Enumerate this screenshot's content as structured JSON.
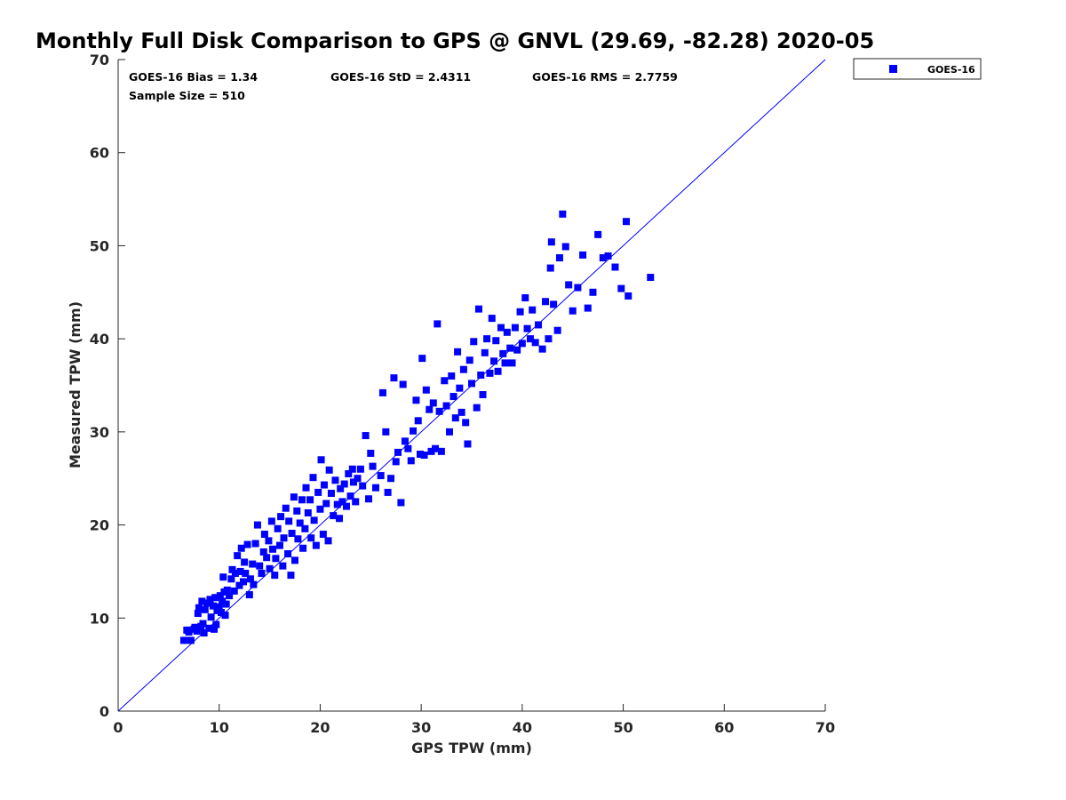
{
  "chart_data": {
    "type": "scatter",
    "title": "Monthly Full Disk Comparison to GPS @ GNVL (29.69, -82.28) 2020-05",
    "xlabel": "GPS TPW (mm)",
    "ylabel": "Measured TPW (mm)",
    "xlim": [
      0,
      70
    ],
    "ylim": [
      0,
      70
    ],
    "xticks": [
      "0",
      "10",
      "20",
      "30",
      "40",
      "50",
      "60",
      "70"
    ],
    "yticks": [
      "0",
      "10",
      "20",
      "30",
      "40",
      "50",
      "60",
      "70"
    ],
    "grid": false,
    "legend_position": "outside-top-right",
    "stats": {
      "bias": "GOES-16 Bias = 1.34",
      "std": "GOES-16 StD = 2.4311",
      "rms": "GOES-16 RMS = 2.7759",
      "sample": "Sample Size = 510"
    },
    "reference_line": {
      "x": [
        0,
        70
      ],
      "y": [
        0,
        70
      ],
      "color": "#0000ff"
    },
    "series": [
      {
        "name": "GOES-16",
        "color": "#0000ff",
        "marker": "square",
        "points": [
          [
            6.5,
            7.6
          ],
          [
            6.8,
            8.7
          ],
          [
            7.0,
            8.5
          ],
          [
            7.2,
            7.6
          ],
          [
            7.5,
            8.8
          ],
          [
            7.6,
            9.0
          ],
          [
            7.8,
            8.6
          ],
          [
            7.9,
            10.5
          ],
          [
            8.0,
            11.1
          ],
          [
            8.2,
            9.1
          ],
          [
            8.3,
            11.8
          ],
          [
            8.4,
            9.4
          ],
          [
            8.5,
            8.4
          ],
          [
            8.6,
            10.9
          ],
          [
            8.8,
            11.6
          ],
          [
            9.0,
            8.9
          ],
          [
            9.1,
            12.0
          ],
          [
            9.2,
            10.1
          ],
          [
            9.4,
            11.3
          ],
          [
            9.5,
            8.8
          ],
          [
            9.6,
            12.2
          ],
          [
            9.7,
            9.3
          ],
          [
            9.8,
            10.8
          ],
          [
            10.0,
            11.2
          ],
          [
            10.1,
            12.4
          ],
          [
            10.2,
            10.6
          ],
          [
            10.3,
            11.8
          ],
          [
            10.4,
            14.4
          ],
          [
            10.5,
            12.8
          ],
          [
            10.6,
            10.3
          ],
          [
            10.7,
            11.5
          ],
          [
            10.8,
            13.0
          ],
          [
            11.0,
            12.4
          ],
          [
            11.2,
            14.2
          ],
          [
            11.3,
            15.2
          ],
          [
            11.5,
            12.9
          ],
          [
            11.6,
            14.8
          ],
          [
            11.8,
            16.7
          ],
          [
            12.0,
            13.5
          ],
          [
            12.1,
            15.0
          ],
          [
            12.2,
            17.5
          ],
          [
            12.4,
            13.9
          ],
          [
            12.5,
            16.0
          ],
          [
            12.6,
            14.8
          ],
          [
            12.8,
            17.9
          ],
          [
            13.0,
            12.5
          ],
          [
            13.1,
            14.2
          ],
          [
            13.3,
            15.8
          ],
          [
            13.4,
            13.6
          ],
          [
            13.6,
            18.0
          ],
          [
            13.8,
            20.0
          ],
          [
            14.0,
            15.6
          ],
          [
            14.2,
            14.8
          ],
          [
            14.4,
            17.1
          ],
          [
            14.5,
            19.0
          ],
          [
            14.7,
            16.5
          ],
          [
            14.9,
            18.3
          ],
          [
            15.0,
            15.3
          ],
          [
            15.2,
            20.4
          ],
          [
            15.3,
            17.4
          ],
          [
            15.5,
            14.6
          ],
          [
            15.6,
            16.4
          ],
          [
            15.8,
            19.6
          ],
          [
            16.0,
            17.8
          ],
          [
            16.1,
            20.9
          ],
          [
            16.3,
            15.6
          ],
          [
            16.4,
            18.6
          ],
          [
            16.6,
            21.8
          ],
          [
            16.8,
            16.9
          ],
          [
            16.9,
            20.4
          ],
          [
            17.1,
            14.6
          ],
          [
            17.2,
            19.1
          ],
          [
            17.4,
            23.0
          ],
          [
            17.5,
            16.2
          ],
          [
            17.7,
            21.5
          ],
          [
            17.8,
            18.5
          ],
          [
            18.0,
            20.2
          ],
          [
            18.2,
            22.7
          ],
          [
            18.3,
            17.5
          ],
          [
            18.5,
            19.6
          ],
          [
            18.6,
            24.0
          ],
          [
            18.8,
            21.3
          ],
          [
            19.0,
            22.7
          ],
          [
            19.1,
            18.6
          ],
          [
            19.3,
            25.1
          ],
          [
            19.4,
            20.5
          ],
          [
            19.6,
            17.8
          ],
          [
            19.8,
            23.5
          ],
          [
            20.0,
            21.7
          ],
          [
            20.1,
            27.0
          ],
          [
            20.3,
            19.0
          ],
          [
            20.4,
            24.3
          ],
          [
            20.6,
            22.3
          ],
          [
            20.8,
            18.3
          ],
          [
            20.9,
            25.9
          ],
          [
            21.1,
            23.4
          ],
          [
            21.3,
            21.0
          ],
          [
            21.5,
            24.8
          ],
          [
            21.7,
            22.2
          ],
          [
            21.9,
            20.7
          ],
          [
            22.0,
            23.9
          ],
          [
            22.2,
            22.5
          ],
          [
            22.4,
            24.4
          ],
          [
            22.6,
            22.0
          ],
          [
            22.8,
            25.5
          ],
          [
            23.0,
            23.1
          ],
          [
            23.2,
            26.0
          ],
          [
            23.3,
            24.6
          ],
          [
            23.5,
            22.5
          ],
          [
            23.7,
            25.0
          ],
          [
            24.0,
            26.0
          ],
          [
            24.2,
            24.2
          ],
          [
            24.5,
            29.6
          ],
          [
            24.8,
            22.8
          ],
          [
            25.0,
            27.7
          ],
          [
            25.2,
            26.3
          ],
          [
            25.5,
            24.0
          ],
          [
            26.0,
            25.3
          ],
          [
            26.2,
            34.2
          ],
          [
            26.5,
            30.0
          ],
          [
            26.7,
            23.5
          ],
          [
            27.0,
            25.0
          ],
          [
            27.3,
            35.8
          ],
          [
            27.5,
            26.8
          ],
          [
            27.7,
            27.8
          ],
          [
            28.0,
            22.4
          ],
          [
            28.2,
            35.1
          ],
          [
            28.4,
            29.0
          ],
          [
            28.7,
            28.2
          ],
          [
            29.0,
            26.9
          ],
          [
            29.2,
            30.1
          ],
          [
            29.5,
            33.4
          ],
          [
            29.7,
            31.2
          ],
          [
            29.9,
            27.6
          ],
          [
            30.1,
            37.9
          ],
          [
            30.3,
            27.5
          ],
          [
            30.5,
            34.5
          ],
          [
            30.8,
            32.4
          ],
          [
            31.0,
            27.9
          ],
          [
            31.2,
            33.1
          ],
          [
            31.4,
            28.2
          ],
          [
            31.6,
            41.6
          ],
          [
            31.8,
            32.2
          ],
          [
            32.0,
            27.9
          ],
          [
            32.3,
            35.5
          ],
          [
            32.5,
            32.8
          ],
          [
            32.8,
            30.0
          ],
          [
            33.0,
            36.0
          ],
          [
            33.2,
            33.8
          ],
          [
            33.4,
            31.5
          ],
          [
            33.6,
            38.6
          ],
          [
            33.8,
            34.7
          ],
          [
            34.0,
            32.1
          ],
          [
            34.2,
            36.7
          ],
          [
            34.4,
            31.0
          ],
          [
            34.6,
            28.7
          ],
          [
            34.8,
            37.7
          ],
          [
            35.0,
            35.2
          ],
          [
            35.2,
            39.7
          ],
          [
            35.5,
            32.6
          ],
          [
            35.7,
            43.2
          ],
          [
            35.9,
            36.1
          ],
          [
            36.1,
            34.0
          ],
          [
            36.3,
            38.5
          ],
          [
            36.5,
            40.0
          ],
          [
            36.8,
            36.3
          ],
          [
            37.0,
            42.2
          ],
          [
            37.2,
            37.6
          ],
          [
            37.4,
            39.8
          ],
          [
            37.6,
            36.5
          ],
          [
            37.9,
            41.2
          ],
          [
            38.1,
            38.4
          ],
          [
            38.3,
            37.4
          ],
          [
            38.5,
            40.7
          ],
          [
            38.8,
            39.0
          ],
          [
            39.0,
            37.4
          ],
          [
            39.3,
            41.2
          ],
          [
            39.5,
            38.8
          ],
          [
            39.8,
            42.9
          ],
          [
            40.0,
            39.5
          ],
          [
            40.3,
            44.4
          ],
          [
            40.5,
            41.1
          ],
          [
            40.8,
            40.0
          ],
          [
            41.0,
            43.1
          ],
          [
            41.3,
            39.6
          ],
          [
            41.6,
            41.5
          ],
          [
            42.0,
            38.9
          ],
          [
            42.3,
            44.0
          ],
          [
            42.6,
            40.0
          ],
          [
            42.8,
            47.6
          ],
          [
            43.1,
            43.7
          ],
          [
            43.5,
            40.9
          ],
          [
            43.7,
            48.7
          ],
          [
            44.0,
            53.4
          ],
          [
            44.3,
            49.9
          ],
          [
            44.6,
            45.8
          ],
          [
            45.0,
            43.0
          ],
          [
            45.5,
            45.5
          ],
          [
            46.0,
            49.0
          ],
          [
            46.5,
            43.3
          ],
          [
            47.0,
            45.0
          ],
          [
            47.5,
            51.2
          ],
          [
            48.0,
            48.7
          ],
          [
            48.5,
            48.9
          ],
          [
            49.2,
            47.7
          ],
          [
            49.8,
            45.4
          ],
          [
            50.3,
            52.6
          ],
          [
            50.5,
            44.6
          ],
          [
            52.7,
            46.6
          ],
          [
            42.9,
            50.4
          ]
        ]
      }
    ]
  }
}
